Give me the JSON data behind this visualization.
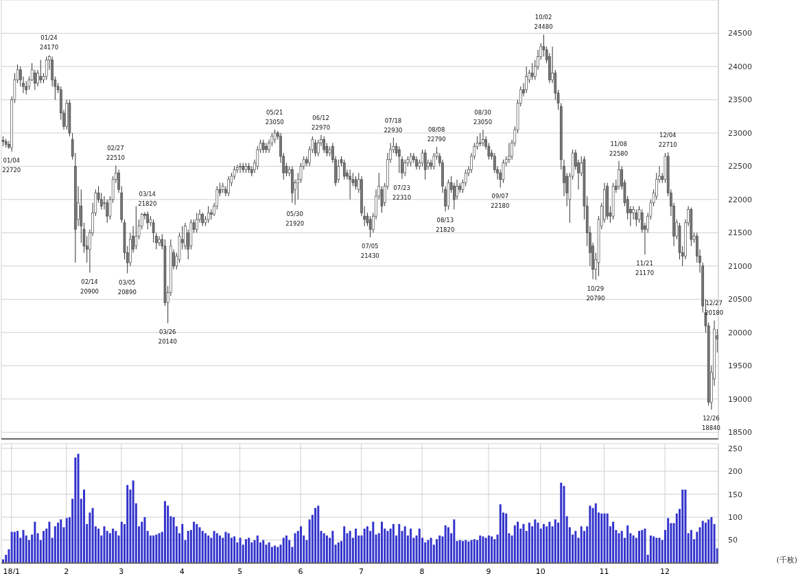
{
  "chart_data": [
    {
      "type": "candlestick",
      "tick_labels": "y",
      "categories": [
        null,
        null,
        null,
        null,
        null,
        null,
        null,
        null,
        null,
        null,
        null,
        null,
        null,
        null,
        null,
        null,
        null,
        null,
        null,
        null,
        null,
        null,
        null,
        null,
        null,
        null,
        null,
        null,
        null,
        null,
        null,
        null,
        null,
        null,
        null,
        null,
        null,
        null,
        null,
        null,
        null,
        null,
        null,
        null,
        null,
        null,
        null,
        null,
        null,
        null,
        null,
        null,
        null,
        null,
        null,
        null,
        null,
        null,
        null,
        null,
        null,
        null,
        null,
        null,
        null,
        null,
        null,
        null,
        null,
        null,
        null,
        null,
        null,
        null,
        null,
        null,
        null,
        null,
        null,
        null,
        null,
        null,
        null,
        null,
        null,
        null,
        null,
        null,
        null,
        null,
        null,
        null,
        null,
        null,
        null,
        null,
        null,
        null,
        null,
        null,
        null,
        null,
        null,
        null,
        null,
        null,
        null,
        null,
        null,
        null,
        null,
        null,
        null,
        null,
        null,
        null,
        null,
        null,
        null,
        null,
        null,
        null,
        null,
        null,
        null,
        null,
        null,
        null,
        null,
        null,
        null,
        null,
        null,
        null,
        null,
        null,
        null,
        null,
        null,
        null,
        null,
        null,
        null,
        null,
        null,
        null,
        null,
        null,
        null,
        null,
        null,
        null,
        null,
        null,
        null,
        null,
        null,
        null,
        null,
        null,
        null,
        null,
        null,
        null,
        null,
        null,
        null,
        null,
        null,
        null,
        null,
        null,
        null,
        null,
        null,
        null,
        null,
        null,
        null,
        null,
        null,
        null,
        null,
        null,
        null,
        null,
        null,
        null,
        null,
        null,
        null,
        null,
        null,
        null,
        null,
        null,
        null,
        null,
        null,
        null,
        null,
        null,
        null,
        null,
        null,
        null,
        null,
        null,
        null,
        null,
        null,
        null,
        null,
        null,
        null,
        null,
        null,
        null,
        null,
        null,
        null,
        null,
        null,
        null,
        null,
        null,
        null,
        null,
        null,
        null,
        null,
        null,
        null,
        null,
        null,
        null,
        null,
        null,
        null,
        null,
        null,
        null,
        null,
        null,
        null,
        null,
        null,
        null
      ],
      "ohlc": [
        [
          22890,
          22950,
          22800,
          22870
        ],
        [
          22870,
          22910,
          22780,
          22830
        ],
        [
          22830,
          22880,
          22760,
          22790
        ],
        [
          22780,
          23550,
          22720,
          23500
        ],
        [
          23500,
          23900,
          23450,
          23800
        ],
        [
          23800,
          24030,
          23750,
          23950
        ],
        [
          23950,
          24000,
          23700,
          23800
        ],
        [
          23750,
          23850,
          23600,
          23700
        ],
        [
          23700,
          23780,
          23580,
          23650
        ],
        [
          23700,
          23850,
          23650,
          23800
        ],
        [
          23800,
          24050,
          23780,
          23950
        ],
        [
          23900,
          23950,
          23650,
          23750
        ],
        [
          23750,
          23950,
          23700,
          23900
        ],
        [
          23850,
          24100,
          23750,
          23800
        ],
        [
          23800,
          23900,
          23750,
          23850
        ],
        [
          23850,
          24150,
          23800,
          24100
        ],
        [
          24100,
          24170,
          23950,
          24150
        ],
        [
          24100,
          24150,
          23700,
          23800
        ],
        [
          23800,
          23850,
          23500,
          23700
        ],
        [
          23700,
          23750,
          23600,
          23650
        ],
        [
          23650,
          23700,
          23200,
          23300
        ],
        [
          23300,
          23350,
          23050,
          23100
        ],
        [
          23100,
          23500,
          23050,
          23450
        ],
        [
          23450,
          23500,
          22950,
          23000
        ],
        [
          22900,
          23000,
          22600,
          22650
        ],
        [
          22500,
          22700,
          21050,
          21550
        ],
        [
          21700,
          22200,
          21600,
          21950
        ],
        [
          21900,
          22150,
          21350,
          21600
        ],
        [
          21550,
          21650,
          21200,
          21300
        ],
        [
          21300,
          21450,
          21050,
          21250
        ],
        [
          21250,
          21550,
          20900,
          21500
        ],
        [
          21500,
          21950,
          21450,
          21800
        ],
        [
          21800,
          22150,
          21750,
          22100
        ],
        [
          22100,
          22200,
          21950,
          22000
        ],
        [
          22000,
          22100,
          21850,
          21900
        ],
        [
          21950,
          22050,
          21850,
          21950
        ],
        [
          21950,
          22000,
          21650,
          21750
        ],
        [
          21750,
          22050,
          21700,
          22000
        ],
        [
          22000,
          22350,
          21950,
          22300
        ],
        [
          22300,
          22510,
          22250,
          22400
        ],
        [
          22400,
          22450,
          22100,
          22150
        ],
        [
          22100,
          22200,
          21650,
          21700
        ],
        [
          21650,
          21700,
          21100,
          21200
        ],
        [
          21200,
          21300,
          20890,
          21050
        ],
        [
          21050,
          21500,
          21000,
          21400
        ],
        [
          21450,
          21600,
          21200,
          21250
        ],
        [
          21300,
          21900,
          21250,
          21450
        ],
        [
          21450,
          21700,
          21400,
          21600
        ],
        [
          21600,
          21800,
          21550,
          21780
        ],
        [
          21780,
          21810,
          21700,
          21760
        ],
        [
          21780,
          21820,
          21550,
          21650
        ],
        [
          21650,
          21750,
          21600,
          21700
        ],
        [
          21650,
          21700,
          21350,
          21500
        ],
        [
          21450,
          21500,
          21250,
          21350
        ],
        [
          21350,
          21450,
          21300,
          21400
        ],
        [
          21400,
          21480,
          21250,
          21300
        ],
        [
          21300,
          21400,
          20400,
          20450
        ],
        [
          20450,
          20700,
          20140,
          20600
        ],
        [
          20600,
          21400,
          20550,
          21300
        ],
        [
          21200,
          21250,
          20950,
          21000
        ],
        [
          21000,
          21200,
          20950,
          21150
        ],
        [
          21100,
          21500,
          21050,
          21450
        ],
        [
          21400,
          21600,
          21250,
          21350
        ],
        [
          21300,
          21650,
          21250,
          21600
        ],
        [
          21500,
          21550,
          21100,
          21250
        ],
        [
          21300,
          21700,
          21250,
          21650
        ],
        [
          21650,
          21700,
          21500,
          21550
        ],
        [
          21550,
          21800,
          21500,
          21700
        ],
        [
          21700,
          21850,
          21650,
          21780
        ],
        [
          21780,
          21800,
          21600,
          21650
        ],
        [
          21650,
          21750,
          21600,
          21700
        ],
        [
          21700,
          21900,
          21650,
          21800
        ],
        [
          21800,
          21850,
          21700,
          21780
        ],
        [
          21780,
          21950,
          21750,
          21900
        ],
        [
          21900,
          22200,
          21850,
          22150
        ],
        [
          22150,
          22250,
          22050,
          22100
        ],
        [
          22150,
          22250,
          22100,
          22200
        ],
        [
          22150,
          22200,
          22050,
          22100
        ],
        [
          22100,
          22350,
          22050,
          22300
        ],
        [
          22250,
          22400,
          22200,
          22350
        ],
        [
          22350,
          22500,
          22300,
          22450
        ],
        [
          22450,
          22520,
          22400,
          22480
        ],
        [
          22500,
          22550,
          22400,
          22500
        ],
        [
          22500,
          22550,
          22400,
          22450
        ],
        [
          22450,
          22550,
          22400,
          22500
        ],
        [
          22500,
          22550,
          22400,
          22450
        ],
        [
          22450,
          22500,
          22350,
          22400
        ],
        [
          22450,
          22600,
          22400,
          22550
        ],
        [
          22500,
          22800,
          22450,
          22750
        ],
        [
          22750,
          22900,
          22700,
          22850
        ],
        [
          22850,
          22900,
          22700,
          22750
        ],
        [
          22800,
          22850,
          22700,
          22750
        ],
        [
          22750,
          22900,
          22700,
          22850
        ],
        [
          22850,
          23000,
          22800,
          22950
        ],
        [
          22900,
          23050,
          22850,
          23000
        ],
        [
          23000,
          23030,
          22900,
          22950
        ],
        [
          22950,
          23000,
          22550,
          22650
        ],
        [
          22650,
          22700,
          22300,
          22400
        ],
        [
          22500,
          22550,
          22350,
          22400
        ],
        [
          22400,
          22500,
          22350,
          22450
        ],
        [
          22450,
          22500,
          21950,
          22100
        ],
        [
          22150,
          22300,
          21920,
          22250
        ],
        [
          22250,
          22400,
          22000,
          22300
        ],
        [
          22300,
          22550,
          22250,
          22500
        ],
        [
          22500,
          22650,
          22450,
          22600
        ],
        [
          22600,
          22650,
          22500,
          22550
        ],
        [
          22550,
          22800,
          22500,
          22750
        ],
        [
          22750,
          22950,
          22700,
          22900
        ],
        [
          22850,
          22900,
          22650,
          22700
        ],
        [
          22700,
          22900,
          22650,
          22850
        ],
        [
          22850,
          22970,
          22800,
          22900
        ],
        [
          22900,
          22950,
          22700,
          22750
        ],
        [
          22800,
          22850,
          22650,
          22700
        ],
        [
          22700,
          22800,
          22650,
          22750
        ],
        [
          22800,
          22850,
          22550,
          22600
        ],
        [
          22600,
          22650,
          22200,
          22250
        ],
        [
          22300,
          22600,
          22250,
          22500
        ],
        [
          22600,
          22650,
          22500,
          22550
        ],
        [
          22550,
          22600,
          22300,
          22350
        ],
        [
          22400,
          22450,
          22300,
          22350
        ],
        [
          22350,
          22450,
          22000,
          22300
        ],
        [
          22300,
          22400,
          22200,
          22250
        ],
        [
          22300,
          22350,
          22150,
          22200
        ],
        [
          22150,
          22400,
          22100,
          22300
        ],
        [
          22300,
          22350,
          21750,
          21800
        ],
        [
          21750,
          21900,
          21600,
          21700
        ],
        [
          21750,
          21800,
          21600,
          21650
        ],
        [
          21700,
          21750,
          21430,
          21550
        ],
        [
          21550,
          21800,
          21500,
          21750
        ],
        [
          21750,
          22150,
          21700,
          22050
        ],
        [
          22050,
          22400,
          22000,
          22200
        ],
        [
          22150,
          22200,
          21800,
          21900
        ],
        [
          21950,
          22250,
          21900,
          22200
        ],
        [
          22200,
          22700,
          22150,
          22600
        ],
        [
          22600,
          22850,
          22550,
          22750
        ],
        [
          22750,
          22930,
          22700,
          22800
        ],
        [
          22800,
          22850,
          22650,
          22700
        ],
        [
          22750,
          22800,
          22400,
          22650
        ],
        [
          22600,
          22650,
          22310,
          22400
        ],
        [
          22400,
          22600,
          22350,
          22550
        ],
        [
          22550,
          22650,
          22500,
          22600
        ],
        [
          22550,
          22700,
          22500,
          22650
        ],
        [
          22650,
          22700,
          22550,
          22600
        ],
        [
          22600,
          22650,
          22450,
          22500
        ],
        [
          22500,
          22600,
          22450,
          22550
        ],
        [
          22550,
          22750,
          22500,
          22700
        ],
        [
          22700,
          22750,
          22300,
          22450
        ],
        [
          22500,
          22600,
          22450,
          22550
        ],
        [
          22550,
          22600,
          22450,
          22500
        ],
        [
          22500,
          22700,
          22450,
          22650
        ],
        [
          22650,
          22790,
          22600,
          22700
        ],
        [
          22650,
          22700,
          22500,
          22550
        ],
        [
          22550,
          22600,
          22100,
          22200
        ],
        [
          22150,
          22200,
          21820,
          21900
        ],
        [
          21900,
          22300,
          21850,
          22250
        ],
        [
          22250,
          22350,
          22100,
          22150
        ],
        [
          22200,
          22250,
          21850,
          22000
        ],
        [
          22050,
          22300,
          22000,
          22200
        ],
        [
          22200,
          22250,
          22100,
          22150
        ],
        [
          22150,
          22300,
          22100,
          22250
        ],
        [
          22250,
          22450,
          22200,
          22400
        ],
        [
          22400,
          22500,
          22350,
          22450
        ],
        [
          22450,
          22700,
          22400,
          22650
        ],
        [
          22650,
          22850,
          22600,
          22800
        ],
        [
          22800,
          22950,
          22750,
          22850
        ],
        [
          22850,
          23000,
          22800,
          22850
        ],
        [
          22850,
          23050,
          22800,
          22900
        ],
        [
          22900,
          22950,
          22750,
          22800
        ],
        [
          22800,
          22850,
          22600,
          22650
        ],
        [
          22700,
          22750,
          22600,
          22650
        ],
        [
          22650,
          22700,
          22400,
          22450
        ],
        [
          22450,
          22500,
          22300,
          22400
        ],
        [
          22400,
          22450,
          22180,
          22300
        ],
        [
          22300,
          22600,
          22250,
          22550
        ],
        [
          22550,
          22650,
          22500,
          22600
        ],
        [
          22600,
          22850,
          22550,
          22650
        ],
        [
          22650,
          22900,
          22600,
          22850
        ],
        [
          22850,
          23100,
          22800,
          23050
        ],
        [
          23050,
          23500,
          23000,
          23450
        ],
        [
          23450,
          23700,
          23400,
          23650
        ],
        [
          23650,
          23750,
          23550,
          23600
        ],
        [
          23650,
          24000,
          23600,
          23850
        ],
        [
          23800,
          23950,
          23750,
          23900
        ],
        [
          23900,
          24050,
          23800,
          23850
        ],
        [
          23850,
          24100,
          23800,
          24000
        ],
        [
          24000,
          24250,
          23950,
          24150
        ],
        [
          24150,
          24350,
          24100,
          24300
        ],
        [
          24300,
          24480,
          24150,
          24250
        ],
        [
          24250,
          24300,
          24050,
          24100
        ],
        [
          24150,
          24200,
          23750,
          23800
        ],
        [
          23800,
          24300,
          23750,
          23900
        ],
        [
          23900,
          23950,
          23500,
          23600
        ],
        [
          23600,
          23650,
          23350,
          23450
        ],
        [
          23400,
          23450,
          22450,
          22600
        ],
        [
          22500,
          22600,
          22050,
          22250
        ],
        [
          22350,
          22400,
          21900,
          22100
        ],
        [
          22000,
          22400,
          21650,
          22350
        ],
        [
          22350,
          22750,
          22300,
          22700
        ],
        [
          22700,
          22750,
          22450,
          22500
        ],
        [
          22550,
          22600,
          22150,
          22400
        ],
        [
          22400,
          22650,
          22350,
          22550
        ],
        [
          22600,
          22650,
          21700,
          21900
        ],
        [
          21900,
          22050,
          21300,
          21500
        ],
        [
          21500,
          21600,
          21000,
          21200
        ],
        [
          21300,
          21350,
          20800,
          20950
        ],
        [
          20950,
          21200,
          20790,
          21100
        ],
        [
          21050,
          21750,
          20850,
          21700
        ],
        [
          21600,
          21950,
          21550,
          21900
        ],
        [
          21700,
          22250,
          21650,
          22150
        ],
        [
          22200,
          22250,
          21700,
          21750
        ],
        [
          21800,
          21900,
          21650,
          21750
        ],
        [
          21750,
          22250,
          21700,
          22200
        ],
        [
          22200,
          22300,
          22100,
          22150
        ],
        [
          22200,
          22580,
          22150,
          22450
        ],
        [
          22450,
          22500,
          22150,
          22200
        ],
        [
          22250,
          22300,
          21900,
          21950
        ],
        [
          22000,
          22050,
          21700,
          21800
        ],
        [
          21850,
          21900,
          21600,
          21800
        ],
        [
          21800,
          21900,
          21700,
          21850
        ],
        [
          21800,
          21850,
          21600,
          21700
        ],
        [
          21700,
          21900,
          21650,
          21850
        ],
        [
          21800,
          21850,
          21500,
          21550
        ],
        [
          21600,
          21650,
          21170,
          21550
        ],
        [
          21550,
          21800,
          21500,
          21750
        ],
        [
          21750,
          22000,
          21700,
          21950
        ],
        [
          21950,
          22150,
          21900,
          22100
        ],
        [
          22050,
          22400,
          22000,
          22300
        ],
        [
          22300,
          22500,
          22250,
          22350
        ],
        [
          22350,
          22400,
          22250,
          22300
        ],
        [
          22300,
          22700,
          22250,
          22650
        ],
        [
          22650,
          22710,
          22050,
          22100
        ],
        [
          22100,
          22150,
          21750,
          21900
        ],
        [
          21900,
          21950,
          21300,
          21450
        ],
        [
          21450,
          21700,
          21400,
          21650
        ],
        [
          21600,
          21650,
          21100,
          21200
        ],
        [
          21200,
          21300,
          21000,
          21150
        ],
        [
          21150,
          21700,
          21100,
          21650
        ],
        [
          21650,
          21900,
          21600,
          21850
        ],
        [
          21850,
          21880,
          21300,
          21400
        ],
        [
          21400,
          21500,
          21350,
          21450
        ],
        [
          21450,
          21500,
          21050,
          21150
        ],
        [
          21150,
          21250,
          20900,
          21050
        ],
        [
          21000,
          21050,
          20300,
          20400
        ],
        [
          20300,
          20500,
          20000,
          20100
        ],
        [
          20100,
          20150,
          18900,
          18950
        ],
        [
          18950,
          19500,
          18840,
          19400
        ],
        [
          19300,
          20180,
          19200,
          20050
        ],
        [
          19950,
          20050,
          19700,
          19900
        ]
      ],
      "ylim": [
        18400,
        25000
      ],
      "yticks": [
        18500,
        19000,
        19500,
        20000,
        20500,
        21000,
        21500,
        22000,
        22500,
        23000,
        23500,
        24000,
        24500
      ],
      "grid": true,
      "annotations": [
        {
          "text": "01/04\n22720",
          "y": 22720
        },
        {
          "text": "01/24\n24170",
          "y": 24170
        },
        {
          "text": "02/14\n20900",
          "y": 20900
        },
        {
          "text": "02/27\n22510",
          "y": 22510
        },
        {
          "text": "03/05\n20890",
          "y": 20890
        },
        {
          "text": "03/14\n21820",
          "y": 21820
        },
        {
          "text": "03/26\n20140",
          "y": 20140
        },
        {
          "text": "05/21\n23050",
          "y": 23050
        },
        {
          "text": "05/30\n21920",
          "y": 21920
        },
        {
          "text": "06/12\n22970",
          "y": 22970
        },
        {
          "text": "07/05\n21430",
          "y": 21430
        },
        {
          "text": "07/18\n22930",
          "y": 22930
        },
        {
          "text": "07/23\n22310",
          "y": 22310
        },
        {
          "text": "08/08\n22790",
          "y": 22790
        },
        {
          "text": "08/13\n21820",
          "y": 21820
        },
        {
          "text": "08/30\n23050",
          "y": 23050
        },
        {
          "text": "09/07\n22180",
          "y": 22180
        },
        {
          "text": "10/02\n24480",
          "y": 24480
        },
        {
          "text": "10/29\n20790",
          "y": 20790
        },
        {
          "text": "11/08\n22580",
          "y": 22580
        },
        {
          "text": "11/21\n21170",
          "y": 21170
        },
        {
          "text": "12/04\n22710",
          "y": 22710
        },
        {
          "text": "12/26\n18840",
          "y": 18840
        },
        {
          "text": "12/27\n20180",
          "y": 20180
        }
      ]
    },
    {
      "type": "bar",
      "categories": [
        null,
        null,
        null,
        "18/1",
        null,
        null,
        null,
        null,
        null,
        null,
        null,
        null,
        null,
        null,
        null,
        null,
        null,
        null,
        null,
        null,
        null,
        null,
        "2",
        null,
        null,
        null,
        null,
        null,
        null,
        null,
        null,
        null,
        null,
        null,
        null,
        null,
        null,
        null,
        null,
        null,
        null,
        "3",
        null,
        null,
        null,
        null,
        null,
        null,
        null,
        null,
        null,
        null,
        null,
        null,
        null,
        null,
        null,
        null,
        null,
        null,
        null,
        null,
        "4",
        null,
        null,
        null,
        null,
        null,
        null,
        null,
        null,
        null,
        null,
        null,
        null,
        null,
        null,
        null,
        null,
        null,
        null,
        null,
        "5",
        null,
        null,
        null,
        null,
        null,
        null,
        null,
        null,
        null,
        null,
        null,
        null,
        null,
        null,
        null,
        null,
        null,
        null,
        null,
        null,
        "6",
        null,
        null,
        null,
        null,
        null,
        null,
        null,
        null,
        null,
        null,
        null,
        null,
        null,
        null,
        null,
        null,
        null,
        null,
        null,
        null,
        "7",
        null,
        null,
        null,
        null,
        null,
        null,
        null,
        null,
        null,
        null,
        null,
        null,
        null,
        null,
        null,
        null,
        null,
        null,
        null,
        null,
        "8",
        null,
        null,
        null,
        null,
        null,
        null,
        null,
        null,
        null,
        null,
        null,
        null,
        null,
        null,
        null,
        null,
        null,
        null,
        null,
        null,
        null,
        null,
        "9",
        null,
        null,
        null,
        null,
        null,
        null,
        null,
        null,
        null,
        null,
        null,
        null,
        null,
        null,
        null,
        null,
        null,
        "10",
        null,
        null,
        null,
        null,
        null,
        null,
        null,
        null,
        null,
        null,
        null,
        null,
        null,
        null,
        null,
        null,
        null,
        null,
        null,
        null,
        null,
        "11",
        null,
        null,
        null,
        null,
        null,
        null,
        null,
        null,
        null,
        null,
        null,
        null,
        null,
        null,
        null,
        null,
        null,
        null,
        null,
        null,
        "12",
        null,
        null,
        null,
        null,
        null,
        null,
        null,
        null,
        null,
        null,
        null,
        null,
        null,
        null,
        null,
        null,
        null,
        null
      ],
      "values": [
        8,
        18,
        30,
        68,
        68,
        70,
        55,
        72,
        60,
        50,
        62,
        90,
        65,
        50,
        70,
        75,
        90,
        55,
        80,
        88,
        95,
        78,
        98,
        100,
        140,
        230,
        238,
        140,
        160,
        85,
        110,
        120,
        80,
        75,
        60,
        80,
        70,
        65,
        75,
        70,
        60,
        90,
        85,
        170,
        160,
        180,
        130,
        80,
        90,
        100,
        70,
        60,
        60,
        62,
        65,
        68,
        135,
        125,
        102,
        100,
        80,
        65,
        85,
        50,
        70,
        72,
        90,
        85,
        78,
        70,
        65,
        60,
        55,
        70,
        65,
        60,
        55,
        68,
        65,
        55,
        58,
        45,
        55,
        40,
        52,
        55,
        45,
        50,
        60,
        45,
        50,
        40,
        45,
        35,
        38,
        35,
        40,
        55,
        60,
        50,
        35,
        65,
        70,
        80,
        60,
        50,
        95,
        105,
        120,
        125,
        70,
        65,
        60,
        55,
        70,
        40,
        45,
        48,
        80,
        65,
        70,
        55,
        75,
        60,
        60,
        75,
        80,
        70,
        90,
        62,
        65,
        90,
        75,
        70,
        75,
        85,
        60,
        85,
        70,
        80,
        60,
        75,
        55,
        60,
        75,
        55,
        45,
        50,
        55,
        40,
        52,
        60,
        58,
        82,
        78,
        65,
        95,
        48,
        50,
        48,
        50,
        47,
        50,
        52,
        50,
        60,
        58,
        55,
        60,
        58,
        52,
        62,
        128,
        110,
        108,
        65,
        60,
        82,
        90,
        75,
        85,
        70,
        88,
        80,
        95,
        88,
        75,
        85,
        80,
        90,
        80,
        95,
        88,
        175,
        168,
        102,
        78,
        62,
        70,
        55,
        80,
        70,
        80,
        125,
        120,
        130,
        110,
        108,
        108,
        108,
        80,
        90,
        72,
        65,
        70,
        55,
        82,
        65,
        60,
        55,
        70,
        72,
        75,
        18,
        60,
        58,
        55,
        55,
        50,
        72,
        98,
        87,
        87,
        108,
        118,
        160,
        160,
        65,
        72,
        52,
        68,
        78,
        92,
        88,
        95,
        100,
        85,
        32
      ],
      "color": "#3333cc",
      "ylim": [
        0,
        260
      ],
      "yticks": [
        50,
        100,
        150,
        200,
        250
      ],
      "ylabel": "(千枚)",
      "grid": true
    }
  ]
}
